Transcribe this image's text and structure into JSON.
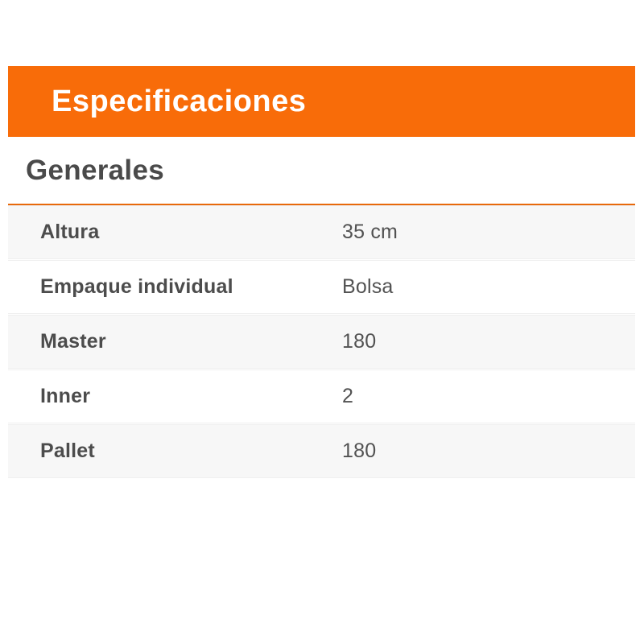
{
  "colors": {
    "accent_orange": "#f86c09",
    "divider_orange": "#e8690b",
    "stripe_gray": "#f7f7f7",
    "heading_text": "#4a4a4a",
    "cell_text": "#4c4c4c"
  },
  "header": {
    "title": "Especificaciones"
  },
  "section": {
    "title": "Generales"
  },
  "spec_table": {
    "rows": [
      {
        "label": "Altura",
        "value": "35 cm"
      },
      {
        "label": "Empaque individual",
        "value": "Bolsa"
      },
      {
        "label": "Master",
        "value": "180"
      },
      {
        "label": "Inner",
        "value": "2"
      },
      {
        "label": "Pallet",
        "value": "180"
      }
    ]
  }
}
